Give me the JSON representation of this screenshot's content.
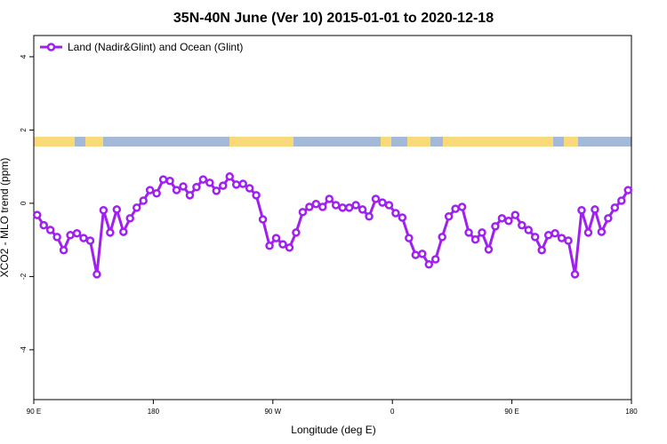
{
  "chart_data": {
    "type": "line",
    "title": "35N-40N June (Ver 10)   2015-01-01 to 2020-12-18",
    "x_label": "Longitude (deg E)",
    "y_label": "XCO2 - MLO trend (ppm)",
    "xlim": [
      90,
      540
    ],
    "ylim": [
      -5.36,
      4.58
    ],
    "xticks": [
      {
        "value": 90,
        "label": "90 E"
      },
      180,
      {
        "value": 270,
        "label": "90 W"
      },
      {
        "value": 360,
        "label": "0"
      },
      {
        "value": 450,
        "label": "90 E"
      },
      {
        "value": 540,
        "label": "180"
      }
    ],
    "yticks": [
      4,
      2,
      0,
      -2,
      -4
    ],
    "legend": "top-left",
    "x": [
      92.5,
      97.5,
      102.5,
      107.5,
      112.5,
      117.5,
      122.5,
      127.5,
      132.5,
      137.5,
      142.5,
      147.5,
      152.5,
      157.5,
      162.5,
      167.5,
      172.5,
      177.5,
      182.5,
      187.5,
      192.5,
      197.5,
      202.5,
      207.5,
      212.5,
      217.5,
      222.5,
      227.5,
      232.5,
      237.5,
      242.5,
      247.5,
      252.5,
      257.5,
      262.5,
      267.5,
      272.5,
      277.5,
      282.5,
      287.5,
      292.5,
      297.5,
      302.5,
      307.5,
      312.5,
      317.5,
      322.5,
      327.5,
      332.5,
      337.5,
      342.5,
      347.5,
      352.5,
      357.5,
      362.5,
      367.5,
      372.5,
      377.5,
      382.5,
      387.5,
      392.5,
      397.5,
      402.5,
      407.5,
      412.5,
      417.5,
      422.5,
      427.5,
      432.5,
      437.5,
      442.5,
      447.5,
      452.5,
      457.5,
      462.5,
      467.5,
      472.5,
      477.5,
      482.5,
      487.5,
      492.5,
      497.5,
      502.5,
      507.5,
      512.5,
      517.5,
      522.5,
      527.5,
      532.5,
      537.5
    ],
    "series": [
      {
        "name": "Land (Nadir&Glint) and Ocean (Glint)",
        "color": "#a020f0",
        "values": [
          -0.32,
          -0.6,
          -0.73,
          -0.92,
          -1.28,
          -0.87,
          -0.82,
          -0.95,
          -1.02,
          -1.94,
          -0.19,
          -0.8,
          -0.17,
          -0.78,
          -0.41,
          -0.12,
          0.07,
          0.36,
          0.27,
          0.65,
          0.61,
          0.36,
          0.46,
          0.22,
          0.44,
          0.65,
          0.56,
          0.34,
          0.48,
          0.73,
          0.51,
          0.53,
          0.41,
          0.22,
          -0.44,
          -1.16,
          -0.95,
          -1.12,
          -1.21,
          -0.8,
          -0.24,
          -0.1,
          -0.02,
          -0.1,
          0.12,
          -0.05,
          -0.12,
          -0.12,
          -0.05,
          -0.17,
          -0.36,
          0.12,
          0.02,
          -0.05,
          -0.27,
          -0.39,
          -0.95,
          -1.41,
          -1.38,
          -1.67,
          -1.53,
          -0.92,
          -0.36,
          -0.15,
          -0.1,
          -0.8,
          -0.99,
          -0.8,
          -1.26,
          -0.63,
          -0.41,
          -0.48,
          -0.32,
          -0.6,
          -0.73,
          -0.92,
          -1.28,
          -0.87,
          -0.82,
          -0.95,
          -1.02,
          -1.94,
          -0.19,
          -0.8,
          -0.17,
          -0.78,
          -0.41,
          -0.12,
          0.07,
          0.36
        ]
      }
    ]
  }
}
